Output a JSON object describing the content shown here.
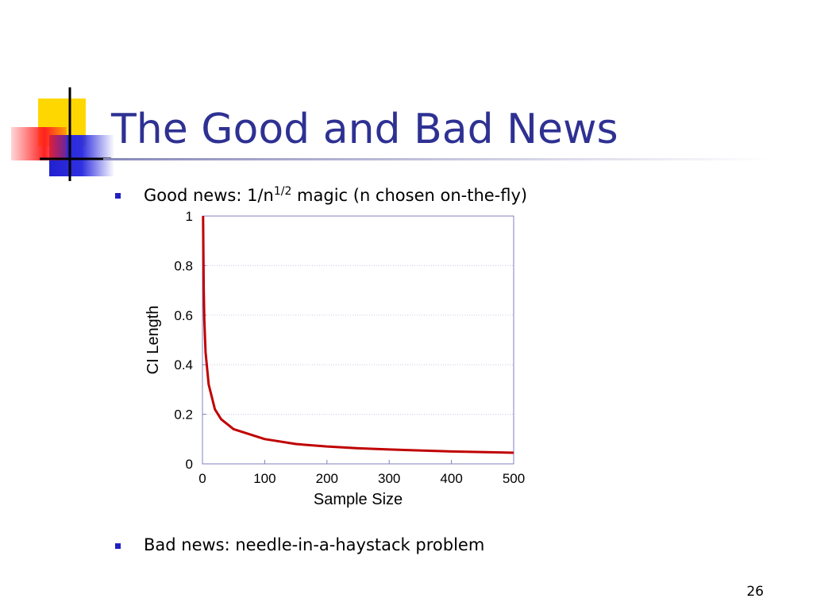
{
  "slide": {
    "title": "The Good and Bad News",
    "bullets": [
      {
        "text": "Good news: 1/n",
        "superscript": "1/2",
        "text_after": " magic (n chosen on-the-fly)"
      },
      {
        "text": "Bad news: needle-in-a-haystack problem"
      }
    ],
    "page_number": "26"
  },
  "chart_data": {
    "type": "line",
    "xlabel": "Sample Size",
    "ylabel": "CI Length",
    "x": [
      1,
      2,
      3,
      5,
      10,
      20,
      30,
      50,
      75,
      100,
      150,
      200,
      250,
      300,
      400,
      500
    ],
    "values": [
      1,
      0.71,
      0.58,
      0.45,
      0.32,
      0.22,
      0.18,
      0.14,
      0.12,
      0.1,
      0.08,
      0.07,
      0.063,
      0.058,
      0.05,
      0.045
    ],
    "color": "#c00000",
    "xlim": [
      0,
      500
    ],
    "xticks": [
      0,
      100,
      200,
      300,
      400,
      500
    ],
    "ylim": [
      0,
      1
    ],
    "yticks": [
      0,
      0.2,
      0.4,
      0.6,
      0.8,
      1
    ],
    "grid": true
  }
}
